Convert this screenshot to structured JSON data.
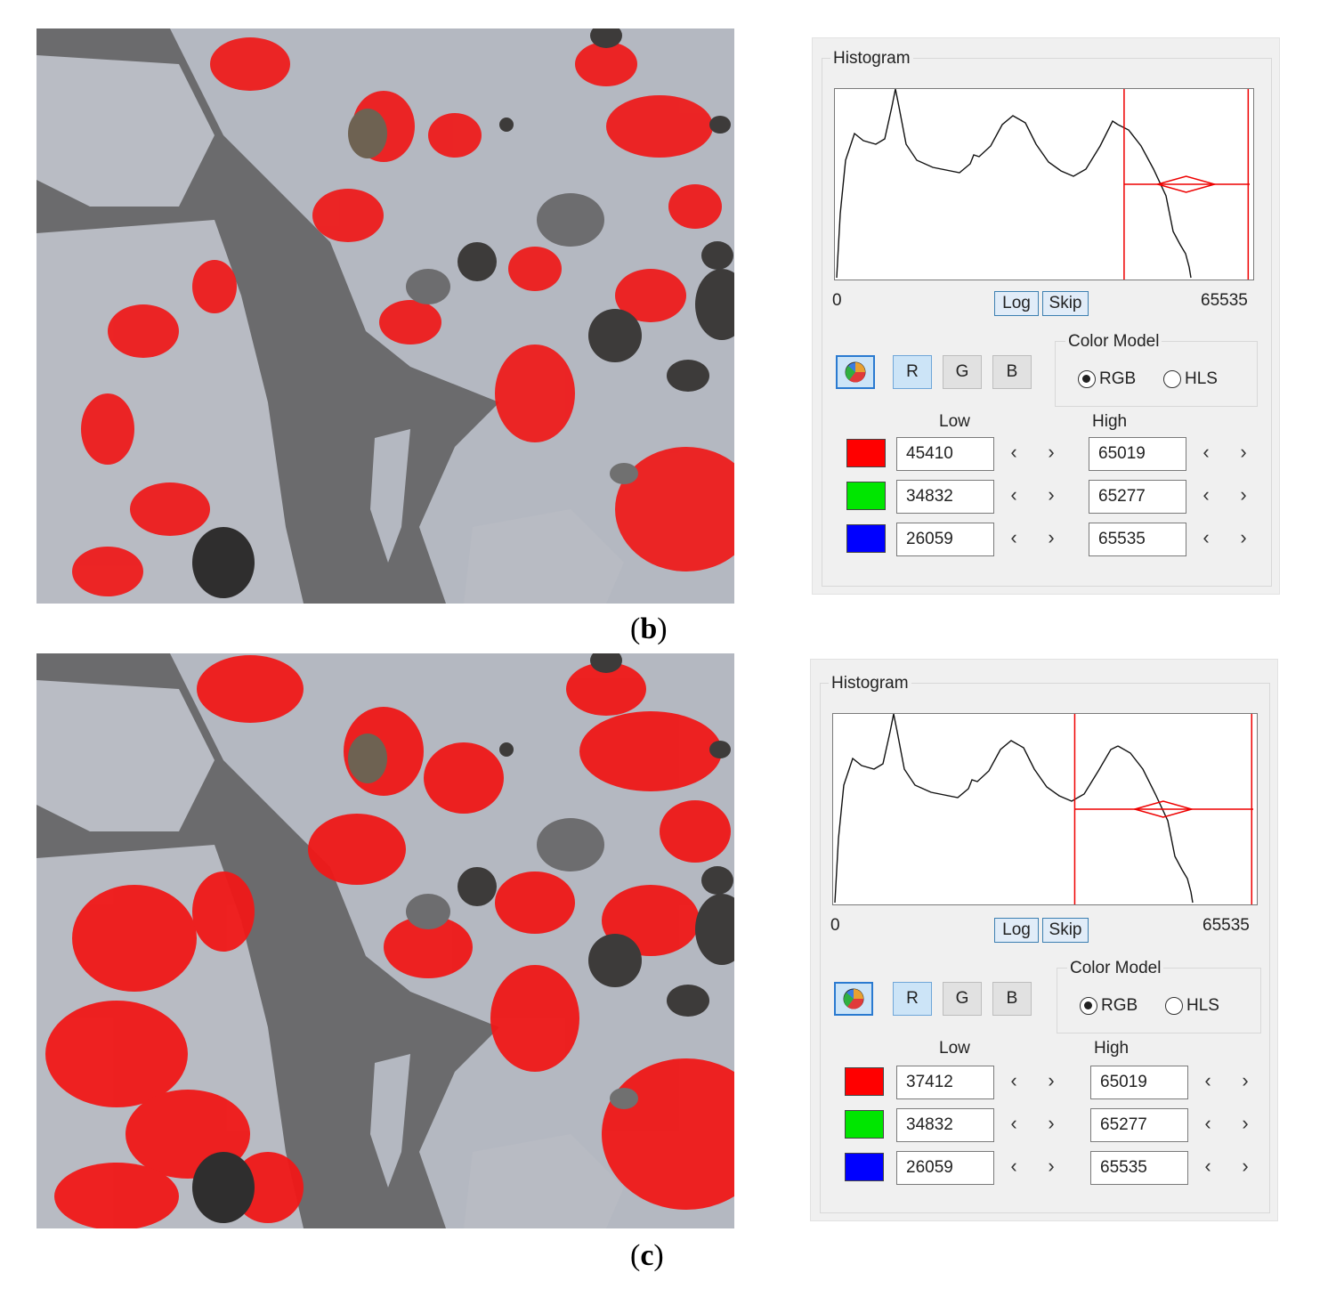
{
  "figures": [
    {
      "caption_letter": "b",
      "histogram": {
        "title": "Histogram",
        "axis_min": "0",
        "axis_max": "65535",
        "log_label": "Log",
        "skip_label": "Skip",
        "low_marker_value": 45410,
        "high_marker_value": 65019,
        "range_max": 65535
      },
      "channel_buttons": [
        "R",
        "G",
        "B"
      ],
      "color_model": {
        "title": "Color Model",
        "options": [
          "RGB",
          "HLS"
        ],
        "selected": "RGB"
      },
      "headers": {
        "low": "Low",
        "high": "High"
      },
      "rows": [
        {
          "color": "#ff0000",
          "low": "45410",
          "high": "65019"
        },
        {
          "color": "#00e600",
          "low": "34832",
          "high": "65277"
        },
        {
          "color": "#0000ff",
          "low": "26059",
          "high": "65535"
        }
      ],
      "spin_left": "‹",
      "spin_right": "›"
    },
    {
      "caption_letter": "c",
      "histogram": {
        "title": "Histogram",
        "axis_min": "0",
        "axis_max": "65535",
        "log_label": "Log",
        "skip_label": "Skip",
        "low_marker_value": 37412,
        "high_marker_value": 65019,
        "range_max": 65535
      },
      "channel_buttons": [
        "R",
        "G",
        "B"
      ],
      "color_model": {
        "title": "Color Model",
        "options": [
          "RGB",
          "HLS"
        ],
        "selected": "RGB"
      },
      "headers": {
        "low": "Low",
        "high": "High"
      },
      "rows": [
        {
          "color": "#ff0000",
          "low": "37412",
          "high": "65019"
        },
        {
          "color": "#00e600",
          "low": "34832",
          "high": "65277"
        },
        {
          "color": "#0000ff",
          "low": "26059",
          "high": "65535"
        }
      ],
      "spin_left": "‹",
      "spin_right": "›"
    }
  ]
}
